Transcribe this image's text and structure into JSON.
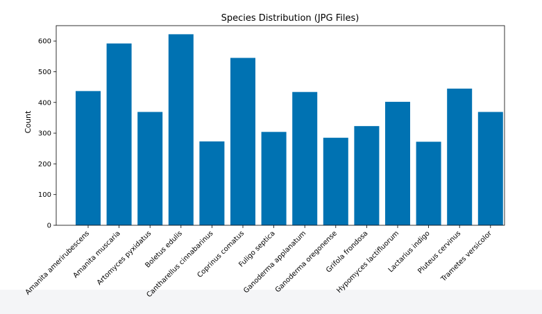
{
  "chart_data": {
    "type": "bar",
    "title": "Species Distribution (JPG Files)",
    "xlabel": "",
    "ylabel": "Count",
    "ylim": [
      0,
      650
    ],
    "yticks": [
      0,
      100,
      200,
      300,
      400,
      500,
      600
    ],
    "grid": false,
    "bar_color": "#0072b2",
    "categories": [
      "Amanita amerirubescens",
      "Amanita muscaria",
      "Artomyces pyxidatus",
      "Boletus edulis",
      "Cantharellus cinnabarinus",
      "Coprinus comatus",
      "Fuligo septica",
      "Ganoderma applanatum",
      "Ganoderma oregonense",
      "Grifola frondosa",
      "Hypomyces lactifluorum",
      "Lactarius indigo",
      "Pluteus cervinus",
      "Trametes versicolor"
    ],
    "values": [
      437,
      592,
      369,
      622,
      273,
      545,
      304,
      434,
      285,
      323,
      402,
      272,
      445,
      369
    ]
  }
}
